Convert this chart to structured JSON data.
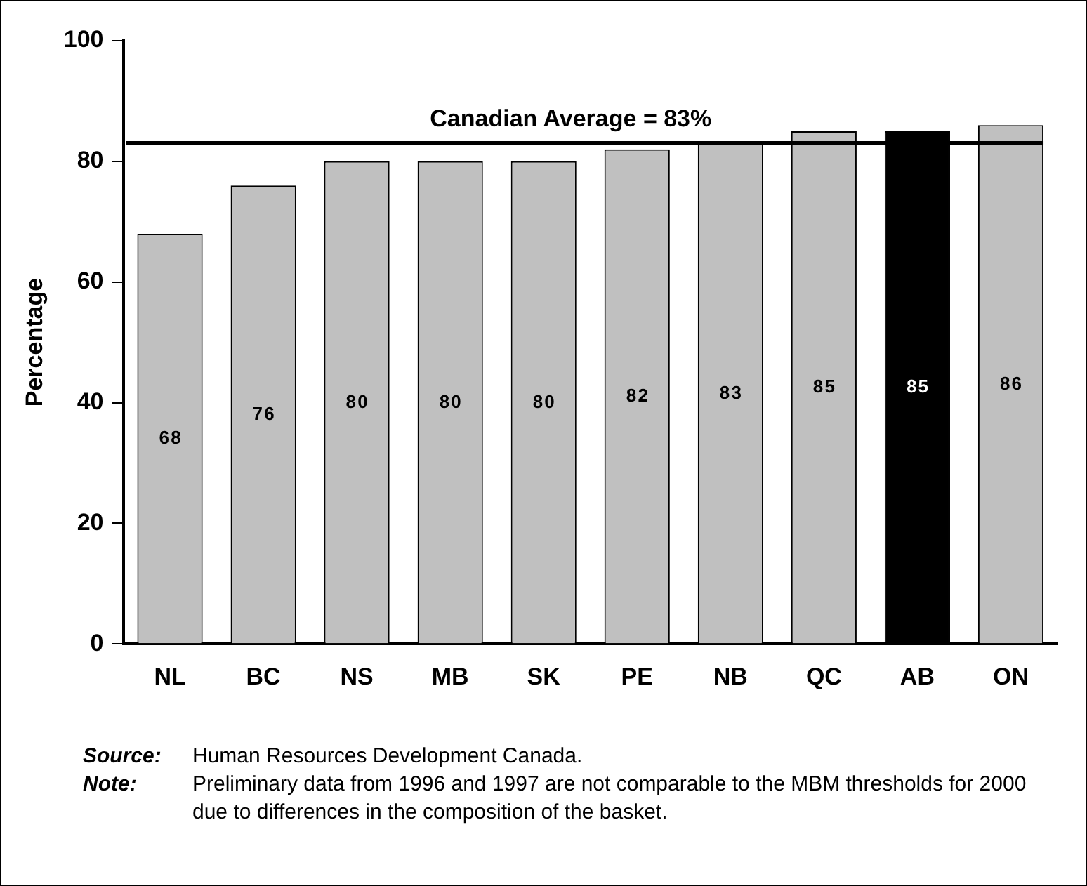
{
  "chart_data": {
    "type": "bar",
    "ylabel": "Percentage",
    "categories": [
      "NL",
      "BC",
      "NS",
      "MB",
      "SK",
      "PE",
      "NB",
      "QC",
      "AB",
      "ON"
    ],
    "values": [
      68,
      76,
      80,
      80,
      80,
      82,
      83,
      85,
      85,
      86
    ],
    "colors": [
      "#c0c0c0",
      "#c0c0c0",
      "#c0c0c0",
      "#c0c0c0",
      "#c0c0c0",
      "#c0c0c0",
      "#c0c0c0",
      "#c0c0c0",
      "#000000",
      "#c0c0c0"
    ],
    "data_labels": true,
    "ylim": [
      0,
      100
    ],
    "yticks": [
      0,
      20,
      40,
      60,
      80,
      100
    ],
    "grid": false,
    "legend": false,
    "ref_lines": [
      {
        "axis": "y",
        "value": 83,
        "label": "Canadian Average = 83%",
        "color": "#000000"
      }
    ],
    "annotations": [
      "Source: Human Resources Development Canada.",
      "Note: Preliminary data from 1996 and 1997 are not comparable to the MBM thresholds for 2000 due to differences in the composition of the basket."
    ]
  }
}
